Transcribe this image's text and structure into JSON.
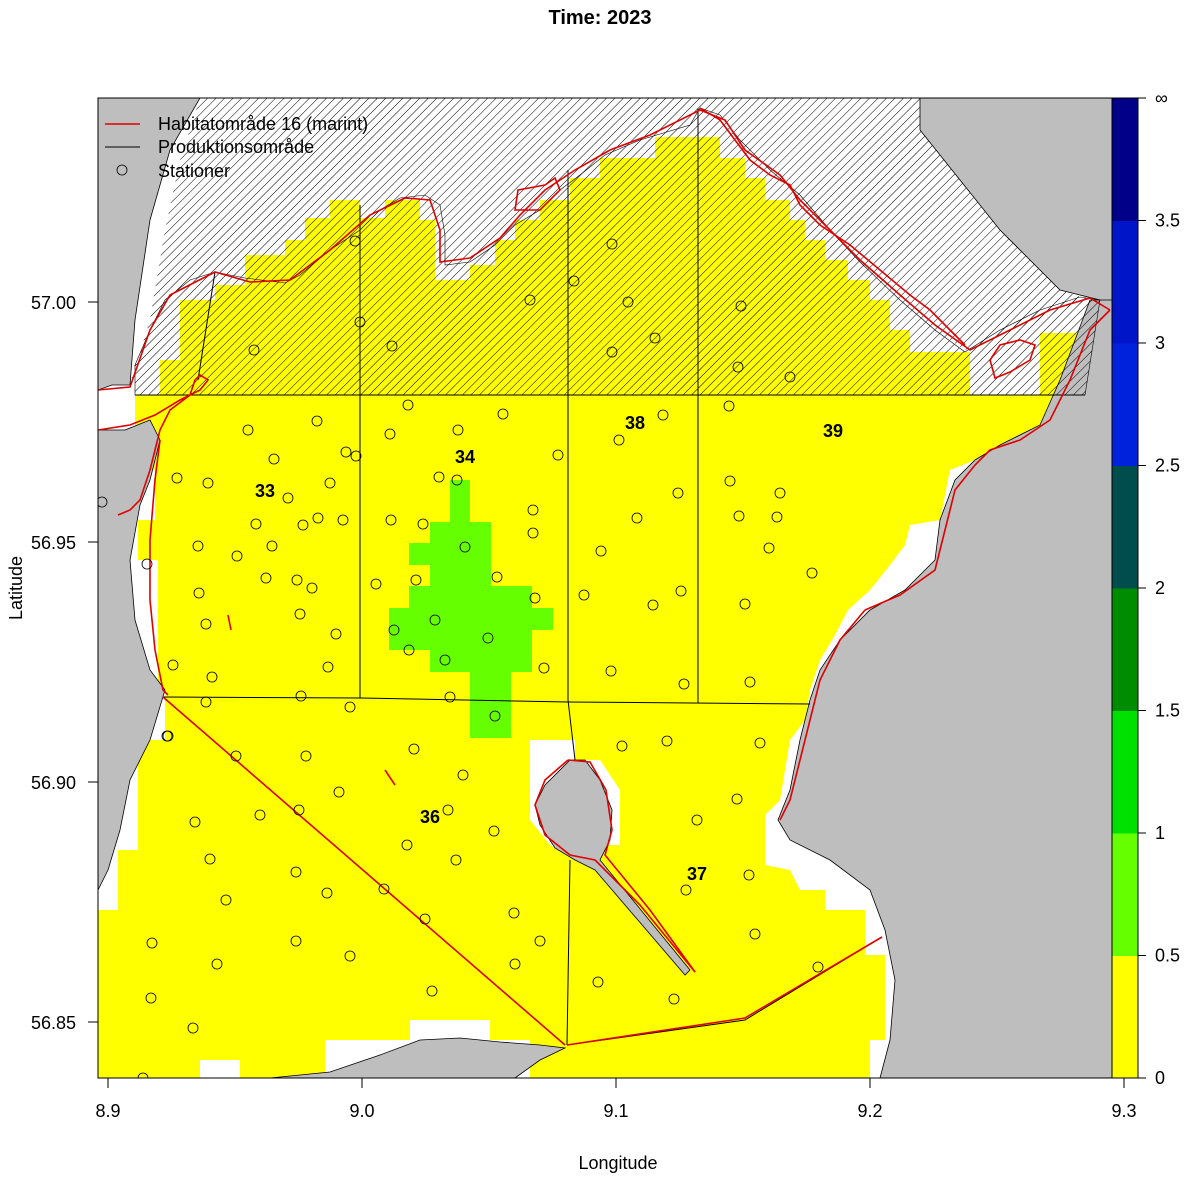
{
  "title": "Time: 2023",
  "axes": {
    "xlabel": "Longitude",
    "ylabel": "Latitude",
    "xticks": [
      "8.9",
      "9.0",
      "9.1",
      "9.2",
      "9.3"
    ],
    "yticks": [
      "56.85",
      "56.90",
      "56.95",
      "57.00"
    ],
    "xlim": [
      8.897,
      9.305
    ],
    "ylim": [
      56.838,
      57.041
    ]
  },
  "legend": {
    "position": "top-left",
    "items": [
      {
        "label": "Habitatområde 16 (marint)",
        "symbol": "line",
        "color": "#e00000"
      },
      {
        "label": "Produktionsområde",
        "symbol": "line",
        "color": "#000000"
      },
      {
        "label": "Stationer",
        "symbol": "circle",
        "color": "#000000"
      }
    ]
  },
  "colorbar": {
    "labels": [
      "0",
      "0.5",
      "1",
      "1.5",
      "2",
      "2.5",
      "3",
      "3.5",
      "∞"
    ],
    "bins": [
      {
        "from": 0,
        "to": 0.5,
        "color": "#ffff00"
      },
      {
        "from": 0.5,
        "to": 1,
        "color": "#66ff00"
      },
      {
        "from": 1,
        "to": 1.5,
        "color": "#00e000"
      },
      {
        "from": 1.5,
        "to": 2,
        "color": "#008c00"
      },
      {
        "from": 2,
        "to": 2.5,
        "color": "#004d4d"
      },
      {
        "from": 2.5,
        "to": 3,
        "color": "#0022dd"
      },
      {
        "from": 3,
        "to": 3.5,
        "color": "#0015c8"
      },
      {
        "from": 3.5,
        "to": "∞",
        "color": "#000088"
      }
    ]
  },
  "areas": [
    {
      "label": "33"
    },
    {
      "label": "34"
    },
    {
      "label": "38"
    },
    {
      "label": "39"
    },
    {
      "label": "36"
    },
    {
      "label": "37"
    }
  ],
  "colors": {
    "land": "#bebebe",
    "low_value": "#ffff00",
    "mid_value": "#66ff00",
    "habitat_line": "#e00000",
    "production_line": "#000000"
  }
}
